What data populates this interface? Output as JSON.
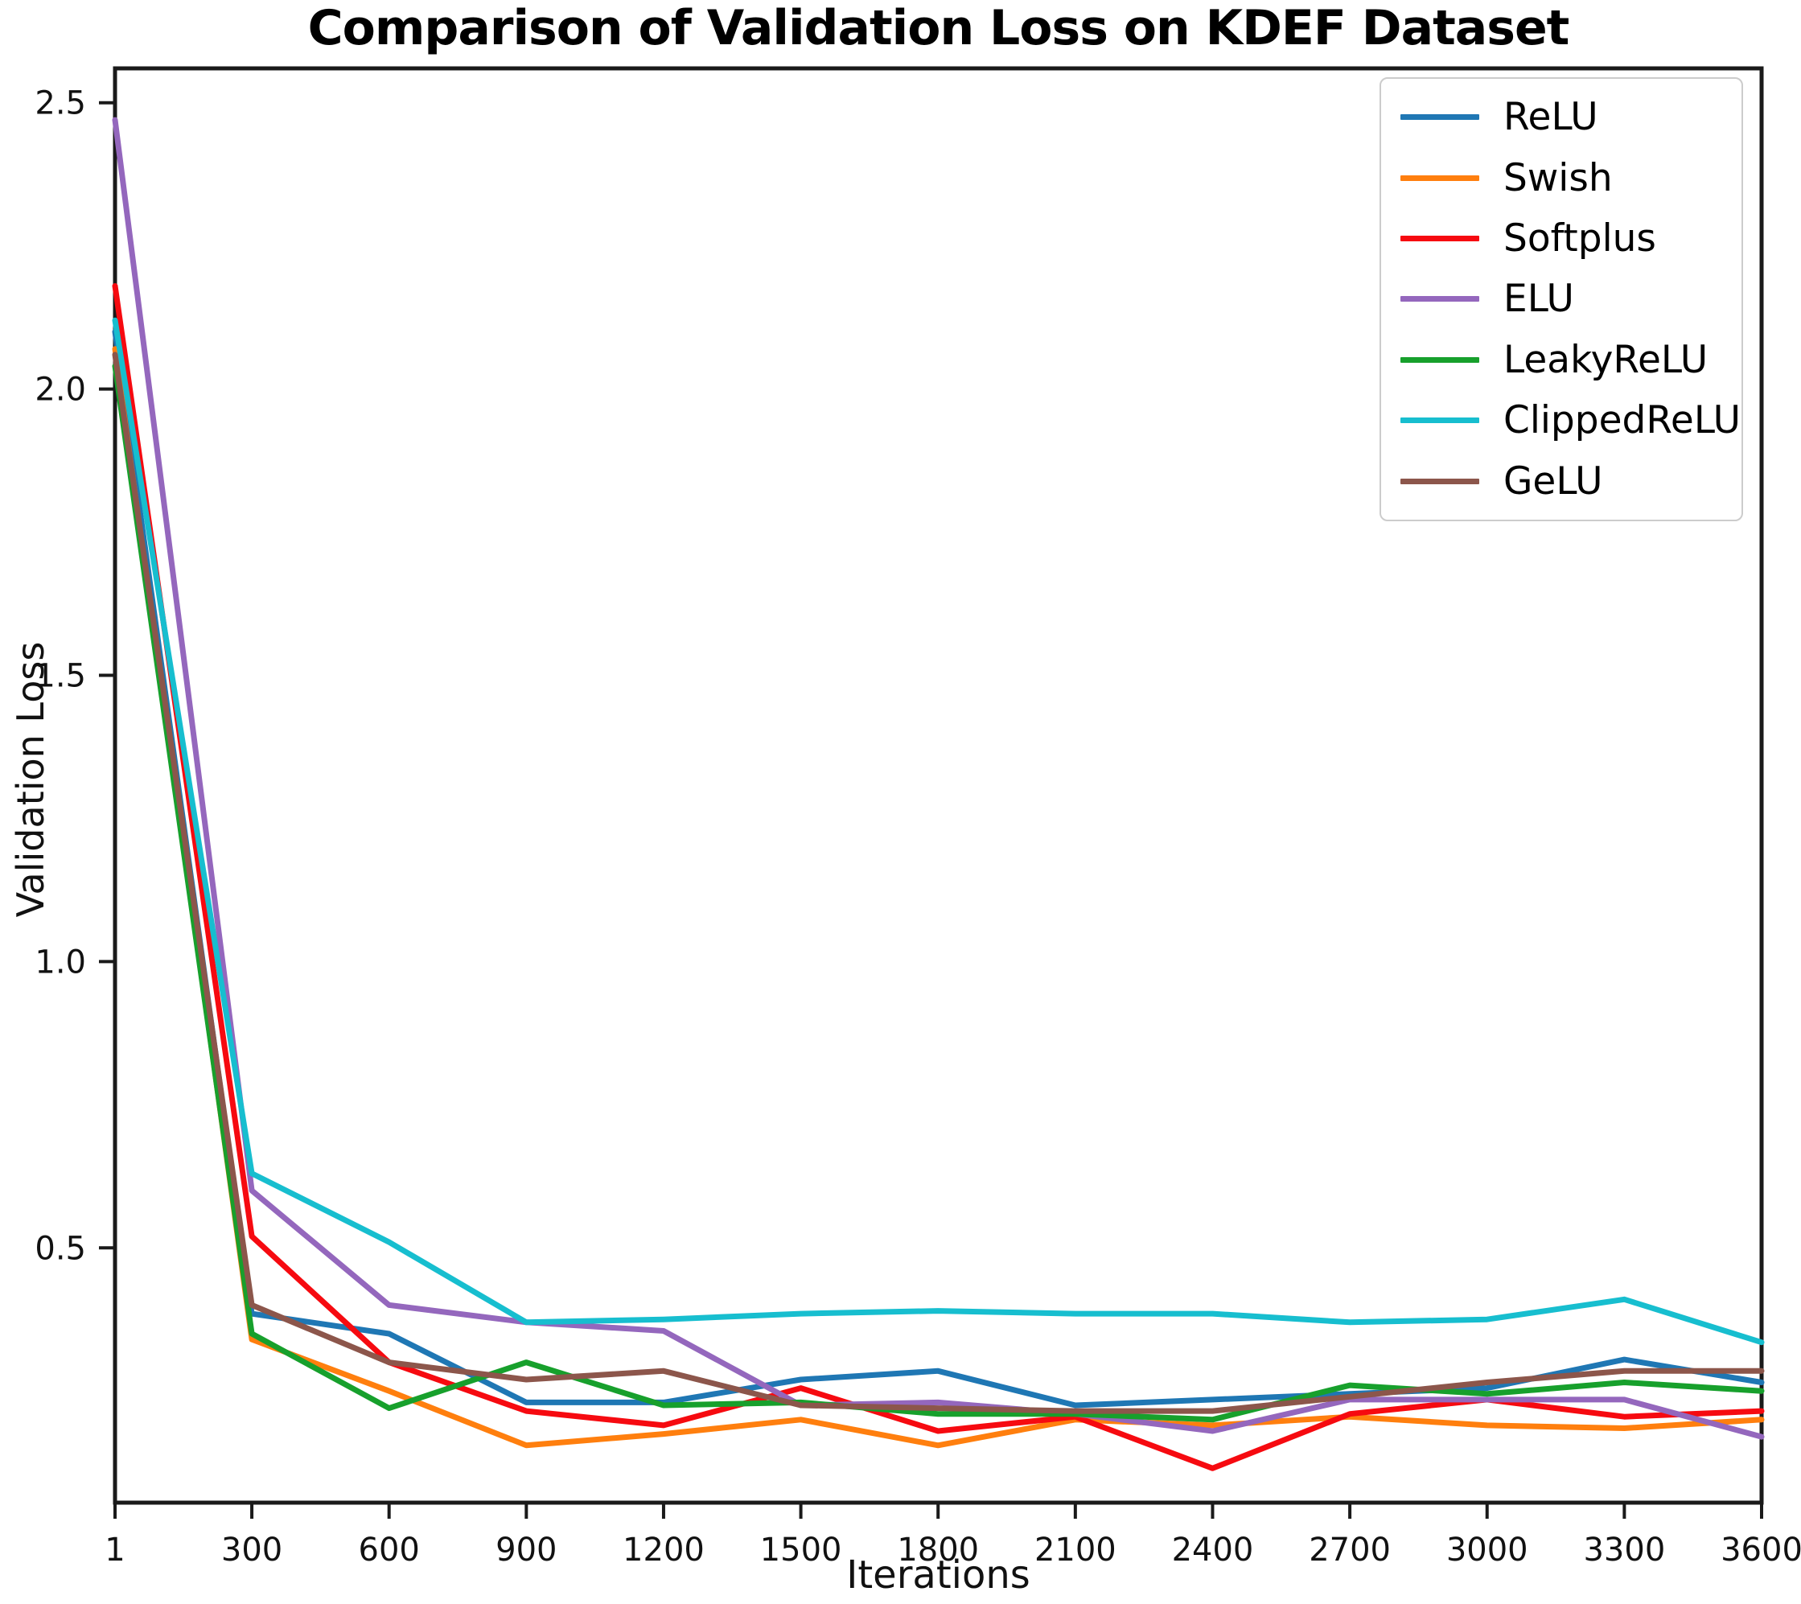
{
  "chart_data": {
    "type": "line",
    "title": "Comparison of Validation Loss on KDEF Dataset",
    "xlabel": "Iterations",
    "ylabel": "Validation Loss",
    "x": [
      1,
      300,
      600,
      900,
      1200,
      1500,
      1800,
      2100,
      2400,
      2700,
      3000,
      3300,
      3600
    ],
    "x_tick_labels": [
      "1",
      "300",
      "600",
      "900",
      "1200",
      "1500",
      "1800",
      "2100",
      "2400",
      "2700",
      "3000",
      "3300",
      "3600"
    ],
    "y_ticks": [
      0.5,
      1.0,
      1.5,
      2.0,
      2.5
    ],
    "y_tick_labels": [
      "0.5",
      "1.0",
      "1.5",
      "2.0",
      "2.5"
    ],
    "xlim": [
      1,
      3600
    ],
    "ylim": [
      0.055,
      2.56
    ],
    "grid": false,
    "legend_position": "upper-right",
    "series": [
      {
        "name": "ReLU",
        "color": "#1f77b4",
        "values": [
          2.1,
          0.385,
          0.35,
          0.23,
          0.23,
          0.27,
          0.285,
          0.225,
          0.235,
          0.245,
          0.255,
          0.305,
          0.265
        ]
      },
      {
        "name": "Swish",
        "color": "#ff7f0e",
        "values": [
          2.07,
          0.34,
          0.25,
          0.155,
          0.175,
          0.2,
          0.155,
          0.2,
          0.19,
          0.205,
          0.19,
          0.185,
          0.2
        ]
      },
      {
        "name": "Softplus",
        "color": "#f60a10",
        "values": [
          2.18,
          0.52,
          0.3,
          0.215,
          0.19,
          0.255,
          0.18,
          0.205,
          0.115,
          0.21,
          0.235,
          0.205,
          0.215
        ]
      },
      {
        "name": "ELU",
        "color": "#9467bd",
        "values": [
          2.47,
          0.6,
          0.4,
          0.37,
          0.355,
          0.225,
          0.23,
          0.21,
          0.18,
          0.235,
          0.235,
          0.235,
          0.17
        ]
      },
      {
        "name": "LeakyReLU",
        "color": "#17a02c",
        "values": [
          2.04,
          0.35,
          0.22,
          0.3,
          0.225,
          0.23,
          0.21,
          0.21,
          0.2,
          0.26,
          0.245,
          0.265,
          0.25
        ]
      },
      {
        "name": "ClippedReLU",
        "color": "#17becf",
        "values": [
          2.12,
          0.63,
          0.51,
          0.37,
          0.375,
          0.385,
          0.39,
          0.385,
          0.385,
          0.37,
          0.375,
          0.41,
          0.335
        ]
      },
      {
        "name": "GeLU",
        "color": "#8c564b",
        "values": [
          2.06,
          0.4,
          0.3,
          0.27,
          0.285,
          0.225,
          0.22,
          0.215,
          0.215,
          0.24,
          0.265,
          0.285,
          0.285
        ]
      }
    ]
  }
}
